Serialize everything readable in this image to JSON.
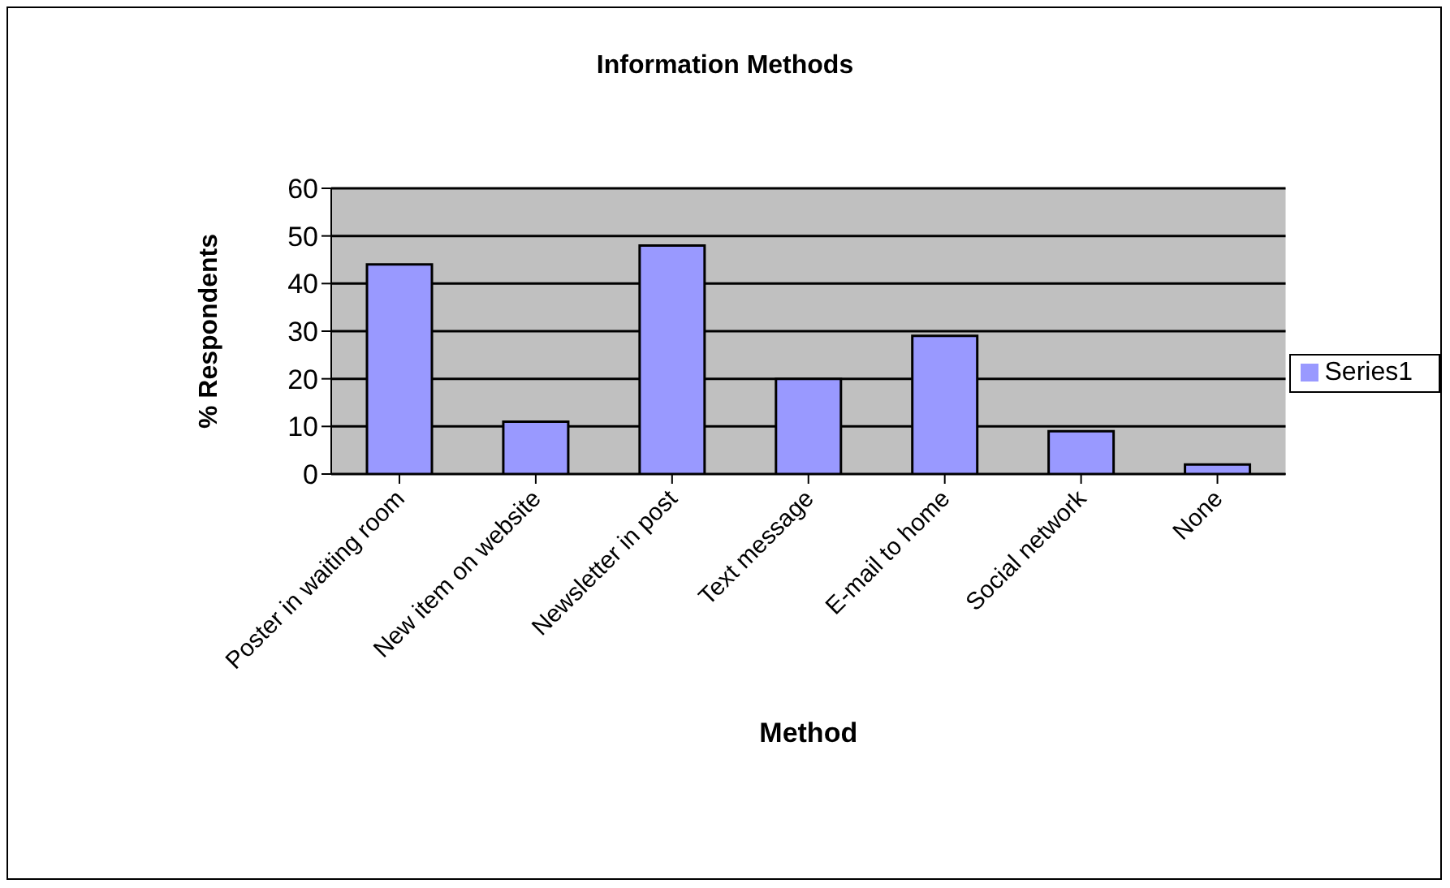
{
  "chart_data": {
    "type": "bar",
    "title": "Information Methods",
    "xlabel": "Method",
    "ylabel": "% Respondents",
    "categories": [
      "Poster in waiting room",
      "New item on website",
      "Newsletter in post",
      "Text message",
      "E-mail to home",
      "Social network",
      "None"
    ],
    "series": [
      {
        "name": "Series1",
        "color": "#9999ff",
        "values": [
          44,
          11,
          48,
          20,
          29,
          9,
          2
        ]
      }
    ],
    "ylim": [
      0,
      60
    ],
    "yticks": [
      0,
      10,
      20,
      30,
      40,
      50,
      60
    ],
    "grid": "y",
    "legend": "right"
  }
}
